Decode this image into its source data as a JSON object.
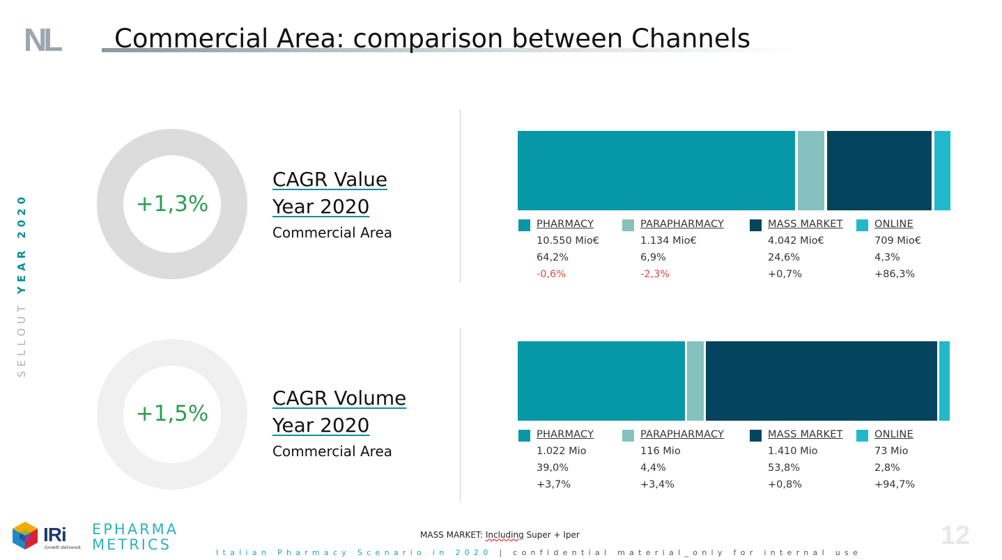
{
  "header": {
    "logo_text": "NL",
    "title": "Commercial Area: comparison between Channels"
  },
  "side_label": {
    "prefix": "SELLOUT ",
    "year": "YEAR 2020"
  },
  "colors": {
    "pharmacy": "#0798a8",
    "parapharmacy": "#84c1bf",
    "mass_market": "#04445e",
    "online": "#22b8cc",
    "positive_green": "#2e9e4f",
    "negative_red": "#e0463f"
  },
  "value_section": {
    "cagr": "+1,3%",
    "title_line1": "CAGR Value",
    "title_line2": "Year 2020",
    "subtitle": "Commercial Area",
    "channels": [
      {
        "name": "PHARMACY",
        "amount": "10.550 Mio€",
        "share": "64,2%",
        "change": "-0,6%",
        "negative": true,
        "share_value": 64.2
      },
      {
        "name": "PARAPHARMACY",
        "amount": "1.134 Mio€",
        "share": "6,9%",
        "change": "-2,3%",
        "negative": true,
        "share_value": 6.9
      },
      {
        "name": "MASS MARKET",
        "amount": "4.042 Mio€",
        "share": "24,6%",
        "change": "+0,7%",
        "negative": false,
        "share_value": 24.6
      },
      {
        "name": "ONLINE",
        "amount": "709 Mio€",
        "share": "4,3%",
        "change": "+86,3%",
        "negative": false,
        "share_value": 4.3
      }
    ]
  },
  "volume_section": {
    "cagr": "+1,5%",
    "title_line1": "CAGR Volume",
    "title_line2": "Year 2020",
    "subtitle": "Commercial Area",
    "channels": [
      {
        "name": "PHARMACY",
        "amount": "1.022 Mio",
        "share": "39,0%",
        "change": "+3,7%",
        "negative": false,
        "share_value": 39.0
      },
      {
        "name": "PARAPHARMACY",
        "amount": "116 Mio",
        "share": "4,4%",
        "change": "+3,4%",
        "negative": false,
        "share_value": 4.4
      },
      {
        "name": "MASS MARKET",
        "amount": "1.410 Mio",
        "share": "53,8%",
        "change": "+0,8%",
        "negative": false,
        "share_value": 53.8
      },
      {
        "name": "ONLINE",
        "amount": "73 Mio",
        "share": "2,8%",
        "change": "+94,7%",
        "negative": false,
        "share_value": 2.8
      }
    ]
  },
  "footer": {
    "footnote_prefix": "MASS MARKET: ",
    "footnote_underlined": "Including",
    "footnote_suffix": " Super + Iper",
    "strip_left": "Italian Pharmacy Scenario in 2020",
    "strip_sep": " | ",
    "strip_right": "confidential material_only for internal use",
    "page_number": "12",
    "iri_text": "IRi",
    "iri_tagline": "Growth delivered.",
    "epm_line1": "EPHARMA",
    "epm_line2": "METRICS"
  }
}
